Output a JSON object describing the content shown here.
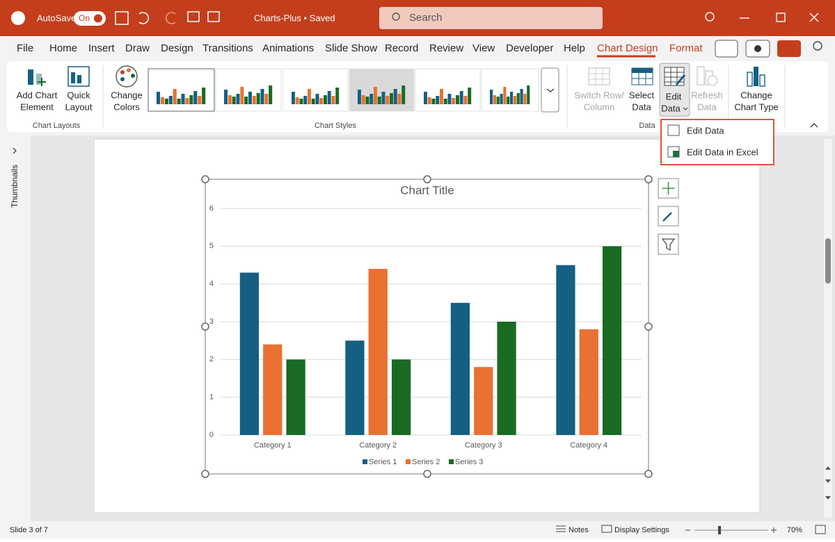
{
  "titlebar": {
    "autosave": "AutoSave",
    "toggle": "On",
    "file": "Charts-Plus • Saved",
    "search": "Search"
  },
  "tabs": [
    "File",
    "Home",
    "Insert",
    "Draw",
    "Design",
    "Transitions",
    "Animations",
    "Slide Show",
    "Record",
    "Review",
    "View",
    "Developer",
    "Help",
    "Chart Design",
    "Format"
  ],
  "ribbon": {
    "buttons": [
      [
        "Add Chart",
        "Element"
      ],
      [
        "Quick",
        "Layout"
      ],
      [
        "Change",
        "Colors"
      ],
      [
        "Switch Row/",
        "Column"
      ],
      [
        "Select",
        "Data"
      ],
      [
        "Edit",
        "Data"
      ],
      [
        "Refresh",
        "Data"
      ],
      [
        "Change",
        "Chart Type"
      ]
    ],
    "groups": [
      "Chart Layouts",
      "Chart Styles",
      "Data"
    ]
  },
  "menu": [
    "Edit Data",
    "Edit Data in Excel"
  ],
  "sidebar": "Thumbnails",
  "status": {
    "slide": "Slide 3 of 7",
    "notes": "Notes",
    "display": "Display Settings",
    "zoom": "70%"
  },
  "chart_data": {
    "type": "bar",
    "title": "Chart Title",
    "categories": [
      "Category 1",
      "Category 2",
      "Category 3",
      "Category 4"
    ],
    "series": [
      {
        "name": "Series 1",
        "color": "#156082",
        "values": [
          4.3,
          2.5,
          3.5,
          4.5
        ]
      },
      {
        "name": "Series 2",
        "color": "#e97132",
        "values": [
          2.4,
          4.4,
          1.8,
          2.8
        ]
      },
      {
        "name": "Series 3",
        "color": "#196b24",
        "values": [
          2,
          2,
          3,
          5
        ]
      }
    ],
    "ylim": [
      0,
      6
    ],
    "yticks": [
      0,
      1,
      2,
      3,
      4,
      5,
      6
    ],
    "grid": true,
    "legend": "bottom"
  }
}
